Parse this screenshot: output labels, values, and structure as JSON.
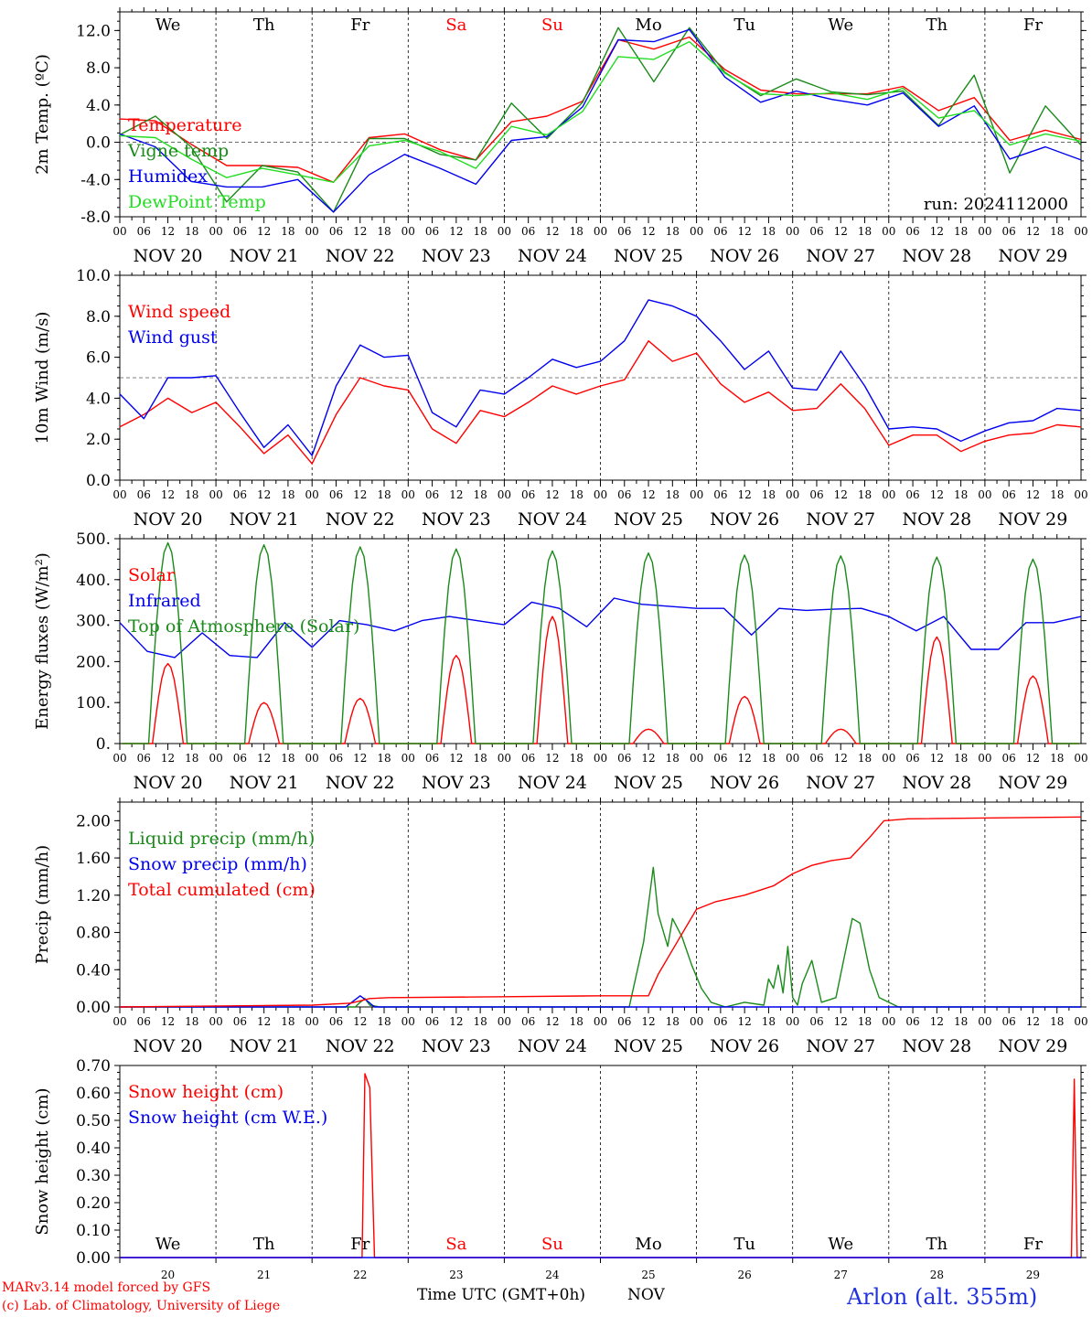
{
  "colors": {
    "red": "#ff0000",
    "green": "#1a8a1a",
    "blue": "#0000ee",
    "lime": "#22dd22",
    "weekend": "#ff0000"
  },
  "days": {
    "weekday_labels": [
      "We",
      "Th",
      "Fr",
      "Sa",
      "Su",
      "Mo",
      "Tu",
      "We",
      "Th",
      "Fr"
    ],
    "weekend_flags": [
      false,
      false,
      false,
      true,
      true,
      false,
      false,
      false,
      false,
      false
    ],
    "date_labels": [
      "NOV 20",
      "NOV 21",
      "NOV 22",
      "NOV 23",
      "NOV 24",
      "NOV 25",
      "NOV 26",
      "NOV 27",
      "NOV 28",
      "NOV 29"
    ],
    "day_numbers": [
      "20",
      "21",
      "22",
      "23",
      "24",
      "25",
      "26",
      "27",
      "28",
      "29"
    ],
    "hour_ticks": [
      "00",
      "06",
      "12",
      "18"
    ],
    "final_tick": "00"
  },
  "footer": {
    "model_line": "MARv3.14 model forced by GFS",
    "lab_line": "(c) Lab. of Climatology, University of Liege",
    "axis_title": "Time UTC (GMT+0h)",
    "month": "NOV",
    "station": "Arlon (alt. 355m)"
  },
  "chart_data": [
    {
      "type": "line",
      "ylabel": "2m Temp. (ºC)",
      "ylim": [
        -8,
        14
      ],
      "yticks": [
        "-8.0",
        "-4.0",
        "0.0",
        "4.0",
        "8.0",
        "12.0"
      ],
      "reference_line": 0,
      "annotation": "run: 2024112000",
      "x_start": "2024-11-20 00 UTC",
      "x_step_hours": 12,
      "series": [
        {
          "name": "Temperature",
          "color": "#ff0000",
          "values": [
            2.5,
            2.3,
            -0.2,
            -2.5,
            -2.5,
            -2.7,
            -4.3,
            0.5,
            0.9,
            -0.8,
            -1.9,
            2.2,
            2.8,
            4.4,
            11.0,
            10.0,
            11.3,
            7.8,
            5.6,
            5.2,
            5.2,
            5.2,
            6.0,
            3.4,
            4.8,
            0.2,
            1.3,
            0.3
          ]
        },
        {
          "name": "Vigne temp",
          "color": "#1a8a1a",
          "values": [
            0.8,
            2.8,
            -0.5,
            -6.4,
            -2.5,
            -3.2,
            -7.5,
            0.4,
            0.4,
            -1.3,
            -1.9,
            4.2,
            0.4,
            4.3,
            12.3,
            6.5,
            12.3,
            7.5,
            5.0,
            6.8,
            5.4,
            5.1,
            5.5,
            1.8,
            7.2,
            -3.3,
            3.9,
            -0.3
          ]
        },
        {
          "name": "Humidex",
          "color": "#0000ee",
          "values": [
            0.9,
            -0.5,
            -4.2,
            -4.8,
            -4.8,
            -4.0,
            -7.5,
            -3.5,
            -1.3,
            -2.8,
            -4.5,
            0.2,
            0.6,
            3.8,
            11.0,
            10.8,
            12.1,
            7.0,
            4.3,
            5.5,
            4.6,
            4.0,
            5.3,
            1.7,
            3.9,
            -1.8,
            -0.5,
            -1.9
          ]
        },
        {
          "name": "DewPoint Temp",
          "color": "#22dd22",
          "values": [
            0.7,
            0.5,
            -1.8,
            -3.8,
            -2.8,
            -3.5,
            -4.3,
            -0.4,
            0.2,
            -1.0,
            -2.8,
            1.7,
            0.8,
            3.3,
            9.2,
            8.9,
            10.8,
            7.4,
            5.2,
            5.0,
            5.3,
            4.6,
            5.8,
            2.6,
            3.4,
            -0.3,
            0.9,
            0.1
          ]
        }
      ]
    },
    {
      "type": "line",
      "ylabel": "10m Wind (m/s)",
      "ylim": [
        0,
        10
      ],
      "yticks": [
        "0.0",
        "2.0",
        "4.0",
        "6.0",
        "8.0",
        "10.0"
      ],
      "reference_line": 5,
      "x_start": "2024-11-20 00 UTC",
      "x_step_hours": 12,
      "series": [
        {
          "name": "Wind speed",
          "color": "#ff0000",
          "values": [
            2.6,
            3.2,
            4.0,
            3.3,
            3.8,
            2.6,
            1.3,
            2.2,
            0.8,
            3.2,
            5.0,
            4.6,
            4.4,
            2.5,
            1.8,
            3.4,
            3.1,
            3.8,
            4.6,
            4.2,
            4.6,
            4.9,
            6.8,
            5.8,
            6.2,
            4.7,
            3.8,
            4.3,
            3.4,
            3.5,
            4.7,
            3.5,
            1.7,
            2.2,
            2.2,
            1.4,
            1.9,
            2.2,
            2.3,
            2.7,
            2.6
          ]
        },
        {
          "name": "Wind gust",
          "color": "#0000ee",
          "values": [
            4.2,
            3.0,
            5.0,
            5.0,
            5.1,
            3.3,
            1.6,
            2.7,
            1.2,
            4.6,
            6.6,
            6.0,
            6.1,
            3.3,
            2.6,
            4.4,
            4.2,
            5.0,
            5.9,
            5.5,
            5.8,
            6.8,
            8.8,
            8.5,
            8.0,
            6.8,
            5.4,
            6.3,
            4.5,
            4.4,
            6.3,
            4.6,
            2.5,
            2.6,
            2.5,
            1.9,
            2.4,
            2.8,
            2.9,
            3.5,
            3.4
          ]
        }
      ]
    },
    {
      "type": "line",
      "ylabel": "Energy fluxes (W/m²)",
      "ylim": [
        0,
        500
      ],
      "yticks": [
        "0.",
        "100.",
        "200.",
        "300.",
        "400.",
        "500."
      ],
      "x_start": "2024-11-20 00 UTC",
      "series": [
        {
          "name": "Solar",
          "color": "#ff0000",
          "daily_peaks": [
            195,
            100,
            110,
            215,
            310,
            35,
            115,
            35,
            260,
            165
          ]
        },
        {
          "name": "Infrared",
          "color": "#0000ee",
          "values": [
            295,
            225,
            210,
            270,
            215,
            210,
            295,
            235,
            300,
            290,
            275,
            300,
            310,
            300,
            290,
            345,
            330,
            285,
            355,
            340,
            335,
            330,
            330,
            265,
            330,
            325,
            328,
            330,
            310,
            275,
            310,
            230,
            230,
            295,
            295,
            310
          ]
        },
        {
          "name": "Top of Atmosphere (Solar)",
          "color": "#1a8a1a",
          "daily_peaks": [
            490,
            485,
            480,
            475,
            470,
            465,
            460,
            458,
            455,
            450
          ]
        }
      ]
    },
    {
      "type": "line",
      "ylabel": "Precip (mm/h)",
      "ylim": [
        0,
        2.2
      ],
      "yticks": [
        "0.00",
        "0.40",
        "0.80",
        "1.20",
        "1.60",
        "2.00"
      ],
      "x_start": "2024-11-20 00 UTC",
      "series": [
        {
          "name": "Liquid precip (mm/h)",
          "color": "#1a8a1a",
          "points": [
            [
              0,
              0
            ],
            [
              2.45,
              0
            ],
            [
              2.5,
              0.05
            ],
            [
              2.55,
              0.09
            ],
            [
              2.6,
              0.02
            ],
            [
              2.7,
              0
            ],
            [
              5.3,
              0
            ],
            [
              5.45,
              0.7
            ],
            [
              5.55,
              1.5
            ],
            [
              5.6,
              1.0
            ],
            [
              5.7,
              0.65
            ],
            [
              5.75,
              0.95
            ],
            [
              5.85,
              0.75
            ],
            [
              5.95,
              0.45
            ],
            [
              6.05,
              0.2
            ],
            [
              6.15,
              0.05
            ],
            [
              6.3,
              0
            ],
            [
              6.5,
              0.05
            ],
            [
              6.7,
              0.02
            ],
            [
              6.75,
              0.3
            ],
            [
              6.8,
              0.2
            ],
            [
              6.85,
              0.45
            ],
            [
              6.9,
              0.15
            ],
            [
              6.95,
              0.65
            ],
            [
              7.0,
              0.1
            ],
            [
              7.05,
              0.02
            ],
            [
              7.1,
              0.25
            ],
            [
              7.2,
              0.5
            ],
            [
              7.3,
              0.05
            ],
            [
              7.45,
              0.1
            ],
            [
              7.55,
              0.6
            ],
            [
              7.62,
              0.95
            ],
            [
              7.7,
              0.9
            ],
            [
              7.8,
              0.4
            ],
            [
              7.9,
              0.1
            ],
            [
              8.1,
              0
            ],
            [
              10,
              0
            ]
          ]
        },
        {
          "name": "Snow precip (mm/h)",
          "color": "#0000ee",
          "points": [
            [
              0,
              0
            ],
            [
              2.35,
              0
            ],
            [
              2.45,
              0.08
            ],
            [
              2.5,
              0.12
            ],
            [
              2.58,
              0.06
            ],
            [
              2.65,
              0
            ],
            [
              10,
              0
            ]
          ]
        },
        {
          "name": "Total cumulated (cm)",
          "color": "#ff0000",
          "points": [
            [
              0,
              0
            ],
            [
              2.0,
              0.02
            ],
            [
              2.4,
              0.04
            ],
            [
              2.6,
              0.09
            ],
            [
              2.8,
              0.1
            ],
            [
              4.0,
              0.11
            ],
            [
              5.0,
              0.12
            ],
            [
              5.5,
              0.12
            ],
            [
              5.6,
              0.35
            ],
            [
              5.8,
              0.7
            ],
            [
              6.0,
              1.05
            ],
            [
              6.2,
              1.13
            ],
            [
              6.5,
              1.2
            ],
            [
              6.8,
              1.3
            ],
            [
              7.0,
              1.43
            ],
            [
              7.2,
              1.52
            ],
            [
              7.4,
              1.57
            ],
            [
              7.6,
              1.6
            ],
            [
              7.8,
              1.82
            ],
            [
              7.95,
              2.0
            ],
            [
              8.2,
              2.02
            ],
            [
              10,
              2.04
            ]
          ]
        }
      ]
    },
    {
      "type": "line",
      "ylabel": "Snow height (cm)",
      "ylim": [
        0,
        0.7
      ],
      "yticks": [
        "0.00",
        "0.10",
        "0.20",
        "0.30",
        "0.40",
        "0.50",
        "0.60",
        "0.70"
      ],
      "x_start": "2024-11-20 00 UTC",
      "series": [
        {
          "name": "Snow height (cm)",
          "color": "#ff0000",
          "points": [
            [
              0,
              0
            ],
            [
              2.52,
              0
            ],
            [
              2.55,
              0.67
            ],
            [
              2.6,
              0.62
            ],
            [
              2.65,
              0
            ],
            [
              9.9,
              0
            ],
            [
              9.93,
              0.65
            ],
            [
              9.96,
              0
            ],
            [
              10,
              0
            ]
          ]
        },
        {
          "name": "Snow height (cm W.E.)",
          "color": "#0000ee",
          "points": [
            [
              0,
              0
            ],
            [
              10,
              0
            ]
          ]
        }
      ]
    }
  ]
}
